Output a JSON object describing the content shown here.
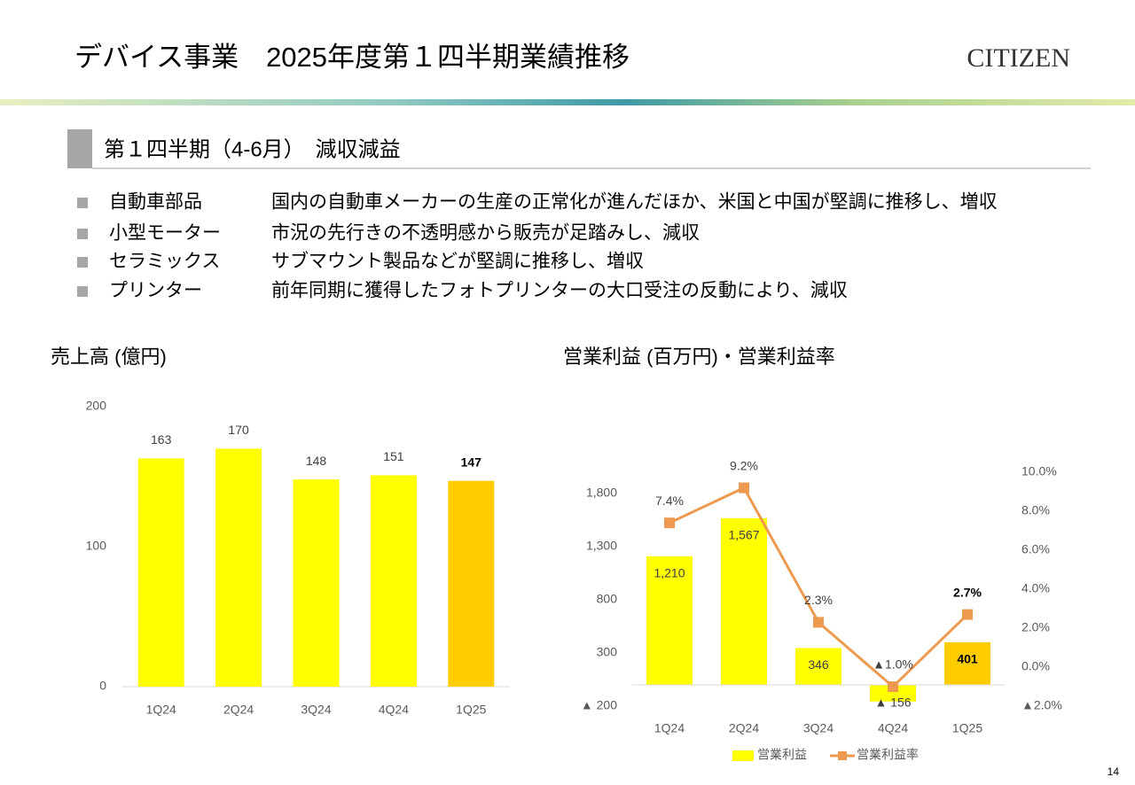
{
  "header": {
    "title": "デバイス事業　2025年度第１四半期業績推移",
    "logo": "CITIZEN"
  },
  "section": {
    "heading": "第１四半期（4-6月）　減収減益"
  },
  "bullets": [
    {
      "label": "自動車部品",
      "text": "国内の自動車メーカーの生産の正常化が進んだほか、米国と中国が堅調に推移し、増収"
    },
    {
      "label": "小型モーター",
      "text": "市況の先行きの不透明感から販売が足踏みし、減収"
    },
    {
      "label": "セラミックス",
      "text": "サブマウント製品などが堅調に推移し、増収"
    },
    {
      "label": "プリンター",
      "text": "前年同期に獲得したフォトプリンターの大口受注の反動により、減収"
    }
  ],
  "page_number": "14",
  "chart_data": [
    {
      "type": "bar",
      "title": "売上高 (億円)",
      "categories": [
        "1Q24",
        "2Q24",
        "3Q24",
        "4Q24",
        "1Q25"
      ],
      "values": [
        163,
        170,
        148,
        151,
        147
      ],
      "colors": [
        "#ffff00",
        "#ffff00",
        "#ffff00",
        "#ffff00",
        "#ffcc00"
      ],
      "ylim": [
        0,
        200
      ],
      "yticks": [
        0,
        100,
        200
      ]
    },
    {
      "type": "bar_line",
      "title": "営業利益 (百万円)・営業利益率",
      "categories": [
        "1Q24",
        "2Q24",
        "3Q24",
        "4Q24",
        "1Q25"
      ],
      "series": [
        {
          "name": "営業利益",
          "type": "bar",
          "color": "#ffff00",
          "colors": [
            "#ffff00",
            "#ffff00",
            "#ffff00",
            "#ffff00",
            "#ffcc00"
          ],
          "values": [
            1210,
            1567,
            346,
            -156,
            401
          ],
          "value_labels": [
            "1,210",
            "1,567",
            "346",
            "▲ 156",
            "401"
          ]
        },
        {
          "name": "営業利益率",
          "type": "line",
          "color": "#ed9a50",
          "axis": "y2",
          "values": [
            7.4,
            9.2,
            2.3,
            -1.0,
            2.7
          ],
          "value_labels": [
            "7.4%",
            "9.2%",
            "2.3%",
            "▲1.0%",
            "2.7%"
          ]
        }
      ],
      "ylim": [
        -200,
        2000
      ],
      "yticks": [
        {
          "value": -200,
          "label": "▲ 200"
        },
        300,
        800,
        {
          "value": 1300,
          "label": "1,300"
        },
        {
          "value": 1800,
          "label": "1,800"
        }
      ],
      "y2lim": [
        -2,
        10
      ],
      "y2ticks": [
        {
          "value": -2,
          "label": "▲2.0%"
        },
        {
          "value": 0,
          "label": "0.0%"
        },
        {
          "value": 2,
          "label": "2.0%"
        },
        {
          "value": 4,
          "label": "4.0%"
        },
        {
          "value": 6,
          "label": "6.0%"
        },
        {
          "value": 8,
          "label": "8.0%"
        },
        {
          "value": 10,
          "label": "10.0%"
        }
      ],
      "legend": "bottom"
    }
  ]
}
